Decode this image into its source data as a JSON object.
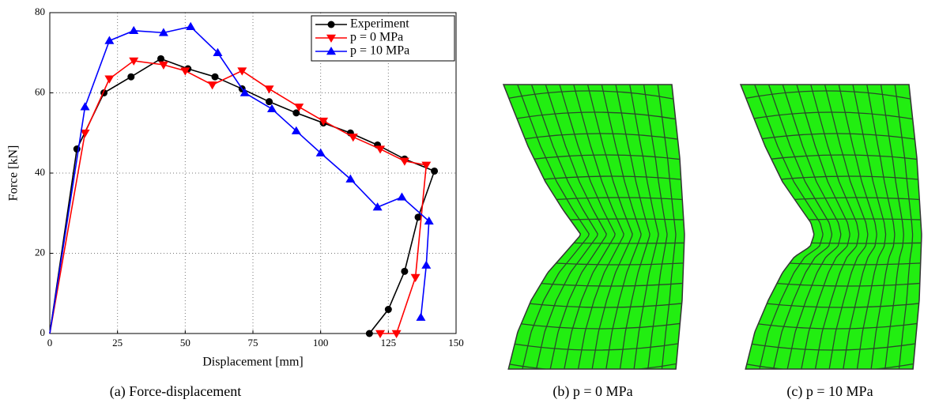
{
  "chart_data": {
    "type": "line",
    "xlabel": "Displacement [mm]",
    "ylabel": "Force [kN]",
    "xlim": [
      0,
      150
    ],
    "ylim": [
      0,
      80
    ],
    "xticks": [
      0,
      25,
      50,
      75,
      100,
      125,
      150
    ],
    "yticks": [
      0,
      20,
      40,
      60,
      80
    ],
    "grid": true,
    "legend": "upper right",
    "series": [
      {
        "name": "Experiment",
        "color": "#000000",
        "marker": "circle",
        "x": [
          10,
          20,
          30,
          41,
          51,
          61,
          71,
          81,
          91,
          101,
          111,
          121,
          131,
          142,
          136,
          131,
          125,
          118
        ],
        "values": [
          46,
          60,
          64,
          68.5,
          66,
          64,
          61,
          57.8,
          55,
          52.5,
          50,
          47,
          43.5,
          40.5,
          29,
          15.5,
          6,
          0
        ]
      },
      {
        "name": "p =   0 MPa",
        "color": "#ff0000",
        "marker": "triangle-down",
        "x": [
          13,
          22,
          31,
          42,
          50,
          60,
          71,
          81,
          92,
          101,
          112,
          122,
          131,
          139,
          135,
          128,
          122
        ],
        "values": [
          50,
          63.5,
          68,
          67,
          65.5,
          62,
          65.5,
          61,
          56.5,
          53,
          49,
          46,
          43,
          42,
          14,
          0,
          0
        ]
      },
      {
        "name": "p = 10 MPa",
        "color": "#0000ff",
        "marker": "triangle-up",
        "x": [
          13,
          22,
          31,
          42,
          52,
          62,
          72,
          82,
          91,
          100,
          111,
          121,
          130,
          140,
          139,
          137
        ],
        "values": [
          56.5,
          73,
          75.5,
          75,
          76.5,
          70,
          60,
          56,
          50.5,
          45,
          38.5,
          31.5,
          34,
          28,
          17,
          4
        ]
      }
    ]
  },
  "captions": [
    "(a) Force-displacement",
    "(b) p = 0 MPa",
    "(c) p = 10 MPa"
  ]
}
